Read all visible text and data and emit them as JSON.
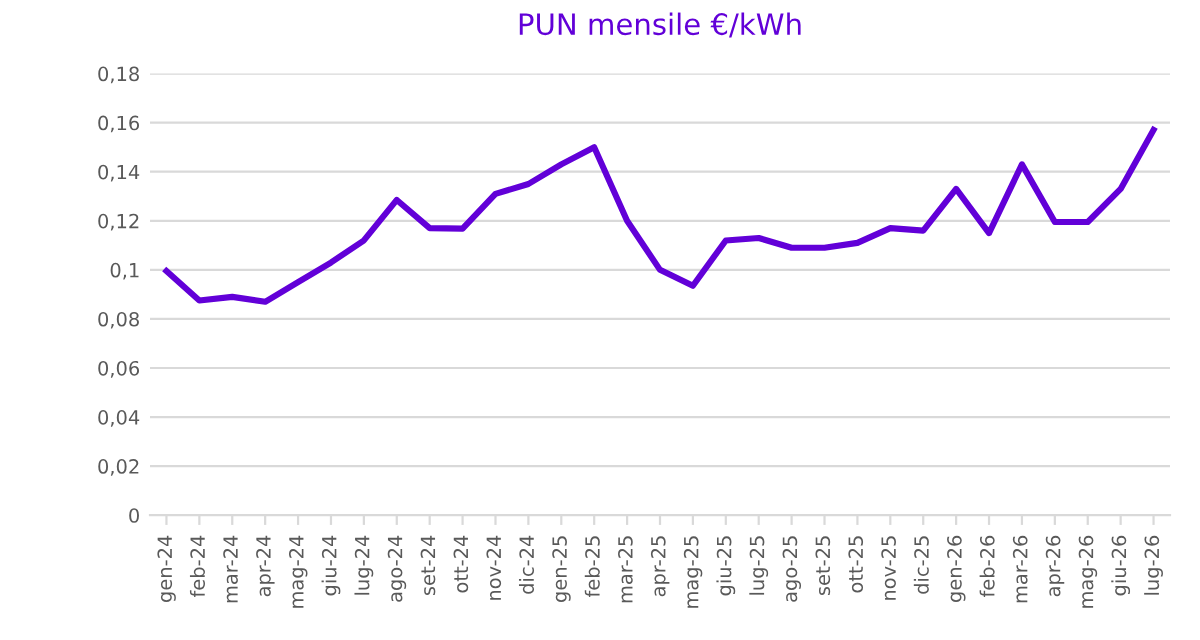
{
  "chart_data": {
    "type": "line",
    "title": "PUN mensile €/kWh",
    "categories": [
      "gen-24",
      "feb-24",
      "mar-24",
      "apr-24",
      "mag-24",
      "giu-24",
      "lug-24",
      "ago-24",
      "set-24",
      "ott-24",
      "nov-24",
      "dic-24",
      "gen-25",
      "feb-25",
      "mar-25",
      "apr-25",
      "mag-25",
      "giu-25",
      "lug-25",
      "ago-25",
      "set-25",
      "ott-25",
      "nov-25",
      "dic-25",
      "gen-26",
      "feb-26",
      "mar-26",
      "apr-26",
      "mag-26",
      "giu-26",
      "lug-26"
    ],
    "series": [
      {
        "color": "#6200d8",
        "values": [
          0.0995,
          0.0875,
          0.089,
          0.087,
          0.095,
          0.103,
          0.112,
          0.1285,
          0.117,
          0.1168,
          0.131,
          0.135,
          0.143,
          0.15,
          0.12,
          0.1,
          0.0935,
          0.112,
          0.113,
          0.109,
          0.109,
          0.111,
          0.117,
          0.116,
          0.133,
          0.115,
          0.143,
          0.1195,
          0.1195,
          0.133,
          0.157
        ]
      }
    ],
    "ylim": [
      0,
      0.18
    ],
    "yticks": [
      0,
      {
        "value": 0.02,
        "label": "0,02"
      },
      {
        "value": 0.04,
        "label": "0,04"
      },
      {
        "value": 0.06,
        "label": "0,06"
      },
      {
        "value": 0.08,
        "label": "0,08"
      },
      {
        "value": 0.1,
        "label": "0,1"
      },
      {
        "value": 0.12,
        "label": "0,12"
      },
      {
        "value": 0.14,
        "label": "0,14"
      },
      {
        "value": 0.16,
        "label": "0,16"
      },
      {
        "value": 0.18,
        "label": "0,18"
      }
    ],
    "grid": "y",
    "marker": "none",
    "line_style": "solid"
  }
}
